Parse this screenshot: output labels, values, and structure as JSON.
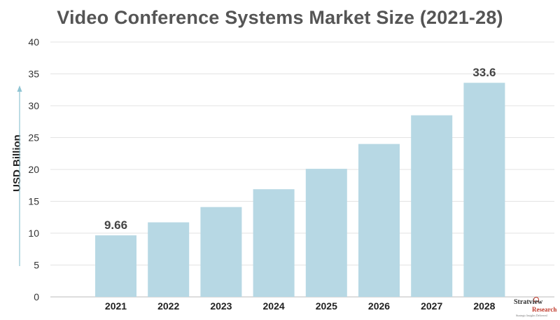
{
  "chart_data": {
    "type": "bar",
    "title": "Video Conference Systems Market Size (2021-28)",
    "xlabel": "",
    "ylabel": "USD Billion",
    "categories": [
      "2021",
      "2022",
      "2023",
      "2024",
      "2025",
      "2026",
      "2027",
      "2028"
    ],
    "values": [
      9.66,
      11.7,
      14.1,
      16.9,
      20.1,
      24.0,
      28.5,
      33.6
    ],
    "data_labels": [
      "9.66",
      "",
      "",
      "",
      "",
      "",
      "",
      "33.6"
    ],
    "ylim": [
      0,
      40
    ],
    "yticks": [
      "0",
      "5",
      "10",
      "15",
      "20",
      "25",
      "30",
      "35",
      "40"
    ],
    "grid": true,
    "bar_color": "#b7d8e4",
    "legend": "none"
  },
  "logo": {
    "line1": "Stratview",
    "line2": "Research",
    "line3": "Strategic Insights Delivered"
  }
}
